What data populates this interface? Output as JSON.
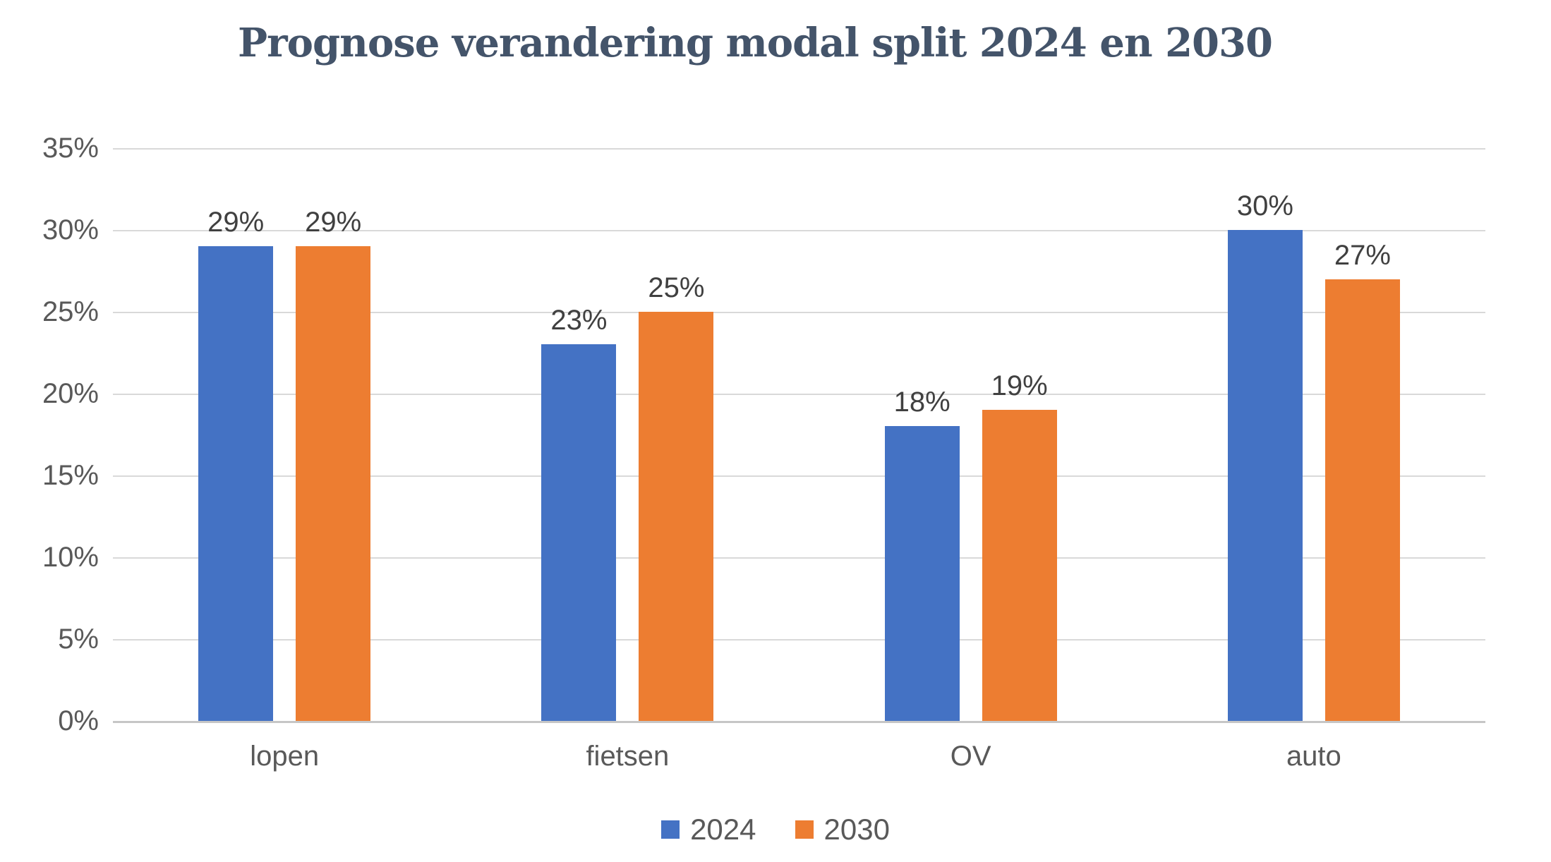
{
  "title": {
    "text": "Prognose verandering modal split 2024 en 2030"
  },
  "colors": {
    "background": "#FFFFFF",
    "title_text": "#44546A",
    "axis_text": "#595959",
    "data_label_text": "#404040",
    "gridline": "#D9D9D9",
    "axis_line": "#C6C6C6",
    "series_2024": "#4472C4",
    "series_2030": "#ED7D31"
  },
  "chart_data": {
    "type": "bar",
    "title": "Prognose verandering modal split 2024 en 2030",
    "categories": [
      "lopen",
      "fietsen",
      "OV",
      "auto"
    ],
    "series": [
      {
        "name": "2024",
        "color": "#4472C4",
        "values": [
          29,
          23,
          18,
          30
        ],
        "data_labels": [
          "29%",
          "23%",
          "18%",
          "30%"
        ]
      },
      {
        "name": "2030",
        "color": "#ED7D31",
        "values": [
          29,
          25,
          19,
          27
        ],
        "data_labels": [
          "29%",
          "25%",
          "19%",
          "27%"
        ]
      }
    ],
    "xlabel": "",
    "ylabel": "",
    "ylim": [
      0,
      35
    ],
    "ytick_step": 5,
    "ytick_labels": [
      "0%",
      "5%",
      "10%",
      "15%",
      "20%",
      "25%",
      "30%",
      "35%"
    ],
    "grid": true,
    "data_labels_shown": true,
    "legend_position": "bottom",
    "legend_entries": [
      "2024",
      "2030"
    ]
  }
}
